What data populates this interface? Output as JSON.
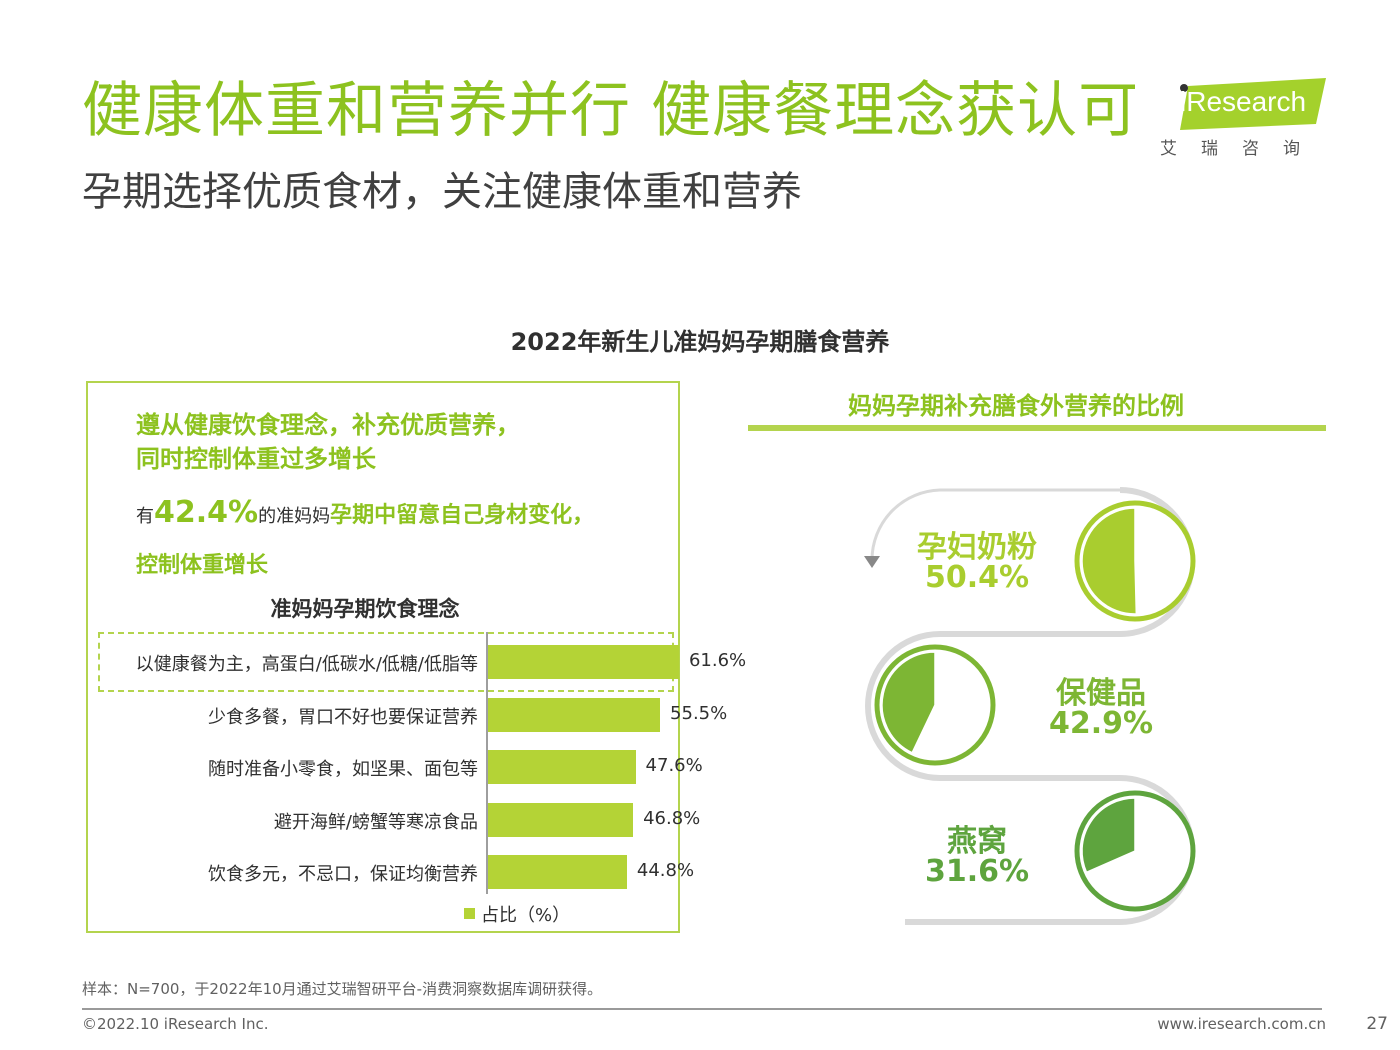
{
  "header": {
    "title": "健康体重和营养并行 健康餐理念获认可",
    "subtitle": "孕期选择优质食材，关注健康体重和营养"
  },
  "logo": {
    "word": "iResearch",
    "cn": "艾瑞咨询",
    "color": "#A4D12C"
  },
  "chart_heading": "2022年新生儿准妈妈孕期膳食营养",
  "left_panel": {
    "highlight_line1": "遵从健康饮食理念，补充优质营养，",
    "highlight_line2": "同时控制体重过多增长",
    "stat_prefix": "有",
    "stat_value": "42.4%",
    "stat_mid": "的准妈妈",
    "stat_emph": "孕期中留意自己身材变化，",
    "stat_line2": "控制体重增长"
  },
  "chart_data": [
    {
      "type": "bar",
      "orientation": "horizontal",
      "title": "准妈妈孕期饮食理念",
      "categories": [
        "以健康餐为主，高蛋白/低碳水/低糖/低脂等",
        "少食多餐，胃口不好也要保证营养",
        "随时准备小零食，如坚果、面包等",
        "避开海鲜/螃蟹等寒凉食品",
        "饮食多元，不忌口，保证均衡营养"
      ],
      "values": [
        61.6,
        55.5,
        47.6,
        46.8,
        44.8
      ],
      "value_labels": [
        "61.6%",
        "55.5%",
        "47.6%",
        "46.8%",
        "44.8%"
      ],
      "legend": "占比（%）",
      "xlim": [
        0,
        100
      ],
      "highlighted_category": 0
    },
    {
      "type": "pie",
      "title": "妈妈孕期补充膳食外营养的比例",
      "items": [
        {
          "name": "孕妇奶粉",
          "value": 50.4,
          "label": "50.4%",
          "color": "#A9CD2F"
        },
        {
          "name": "保健品",
          "value": 42.9,
          "label": "42.9%",
          "color": "#7DB634"
        },
        {
          "name": "燕窝",
          "value": 31.6,
          "label": "31.6%",
          "color": "#5EA43E"
        }
      ]
    }
  ],
  "footer": {
    "source": "样本：N=700，于2022年10月通过艾瑞智研平台-消费洞察数据库调研获得。",
    "copyright": "©2022.10 iResearch Inc.",
    "site": "www.iresearch.com.cn",
    "page": "27"
  }
}
